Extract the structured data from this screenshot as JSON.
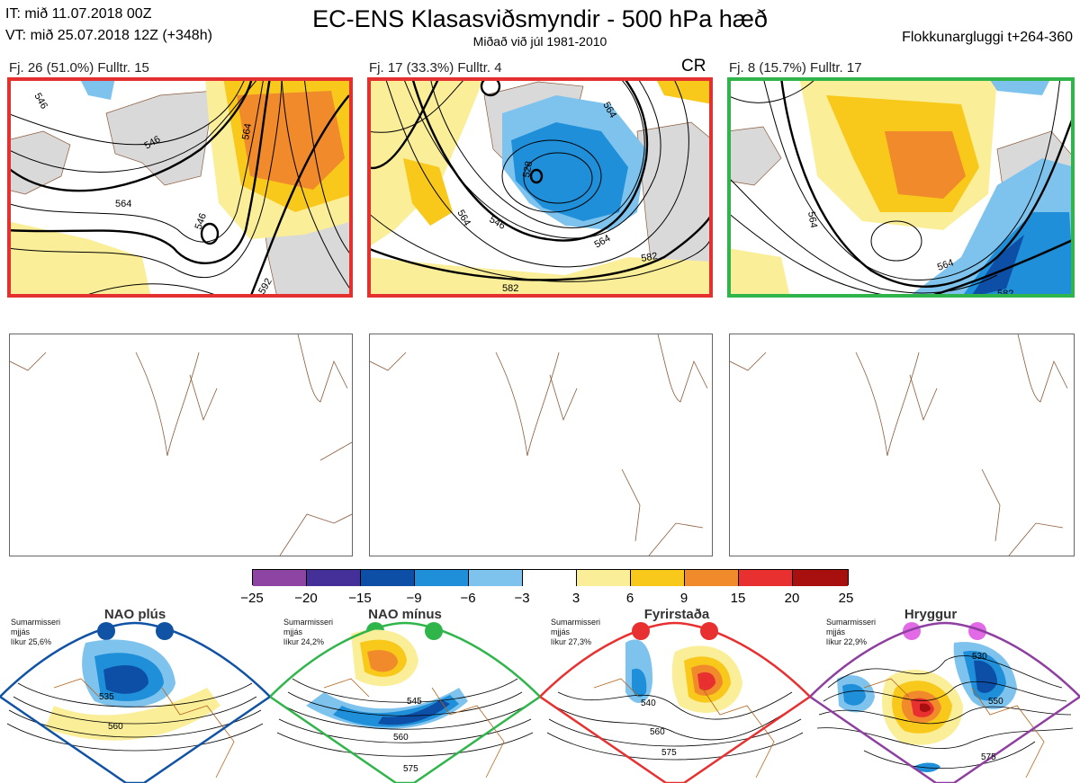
{
  "header": {
    "it": "IT: mið 11.07.2018 00Z",
    "vt": "VT: mið 25.07.2018 12Z  (+348h)",
    "title": "EC-ENS Klasasviðsmyndir - 500 hPa hæð",
    "subtitle": "Miðað við júl 1981-2010",
    "window": "Flokkunargluggi t+264-360"
  },
  "panels": [
    {
      "label": "Fj. 26 (51.0%)   Fulltr. 15",
      "tag": "",
      "border": "#e53030",
      "contours": [
        "546",
        "564",
        "546",
        "564",
        "592",
        "546"
      ]
    },
    {
      "label": "Fj. 17 (33.3%)   Fulltr. 4",
      "tag": "CR",
      "border": "#e53030",
      "contours": [
        "528",
        "546",
        "564",
        "582",
        "564",
        "582",
        "564"
      ]
    },
    {
      "label": "Fj. 8 (15.7%)   Fulltr. 17",
      "tag": "",
      "border": "#2fb54a",
      "contours": [
        "564",
        "564",
        "582"
      ]
    }
  ],
  "colorbar": {
    "colors": [
      "#8e44a3",
      "#45309a",
      "#0d4fa6",
      "#1e8fd8",
      "#7ec3ed",
      "#ffffff",
      "#fbee98",
      "#f8c81a",
      "#f08a2a",
      "#e83030",
      "#a81010"
    ],
    "ticks": [
      "−25",
      "−20",
      "−15",
      "−9",
      "−6",
      "−3",
      "3",
      "6",
      "9",
      "15",
      "20",
      "25"
    ]
  },
  "regimes": [
    {
      "name": "NAO plús",
      "line1": "Sumarmisseri",
      "line2": "mjjás",
      "line3": "líkur 25,6%",
      "color": "#1052a4",
      "contours": [
        "535",
        "560"
      ]
    },
    {
      "name": "NAO mínus",
      "line1": "Sumarmisseri",
      "line2": "mjjás",
      "line3": "líkur 24,2%",
      "color": "#2fb54a",
      "contours": [
        "545",
        "560",
        "575"
      ]
    },
    {
      "name": "Fyrirstaða",
      "line1": "Sumarmisseri",
      "line2": "mjjás",
      "line3": "líkur 27,3%",
      "color": "#e83030",
      "contours": [
        "540",
        "560",
        "575"
      ]
    },
    {
      "name": "Hryggur",
      "line1": "Sumarmisseri",
      "line2": "mjjás",
      "line3": "líkur 22,9%",
      "color": "#e26ae6",
      "contours": [
        "530",
        "550",
        "575"
      ]
    }
  ]
}
